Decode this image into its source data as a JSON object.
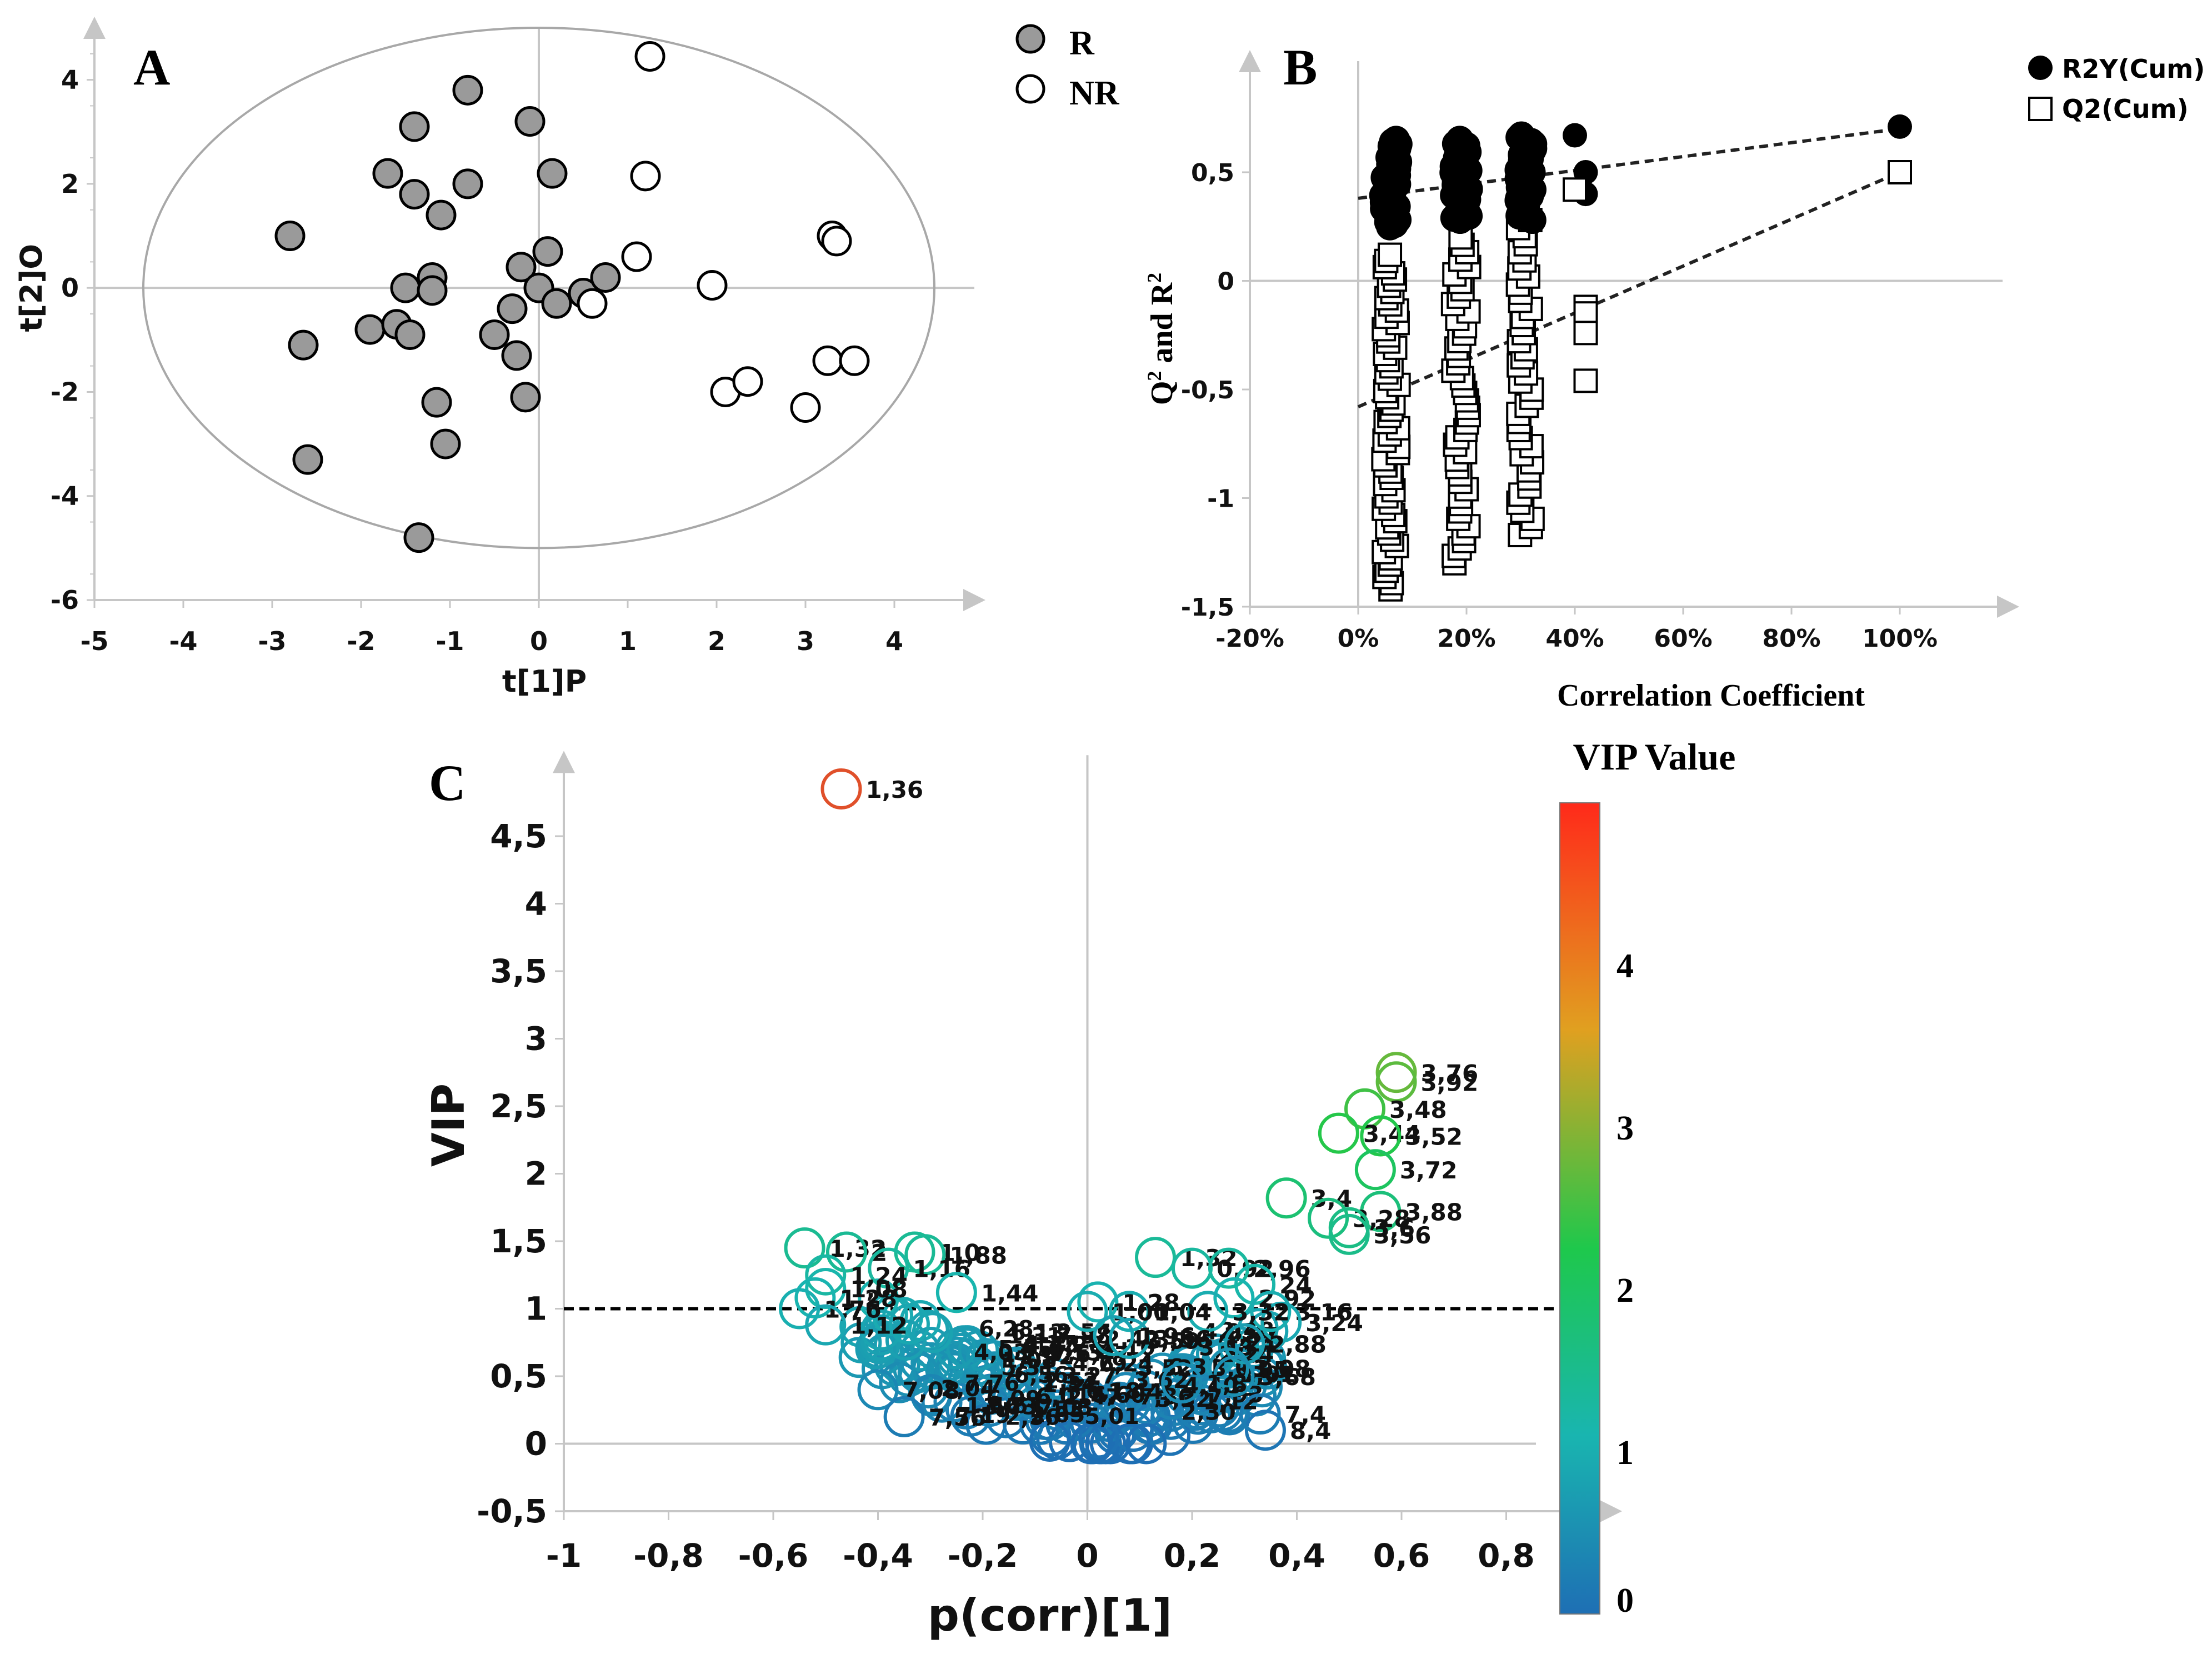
{
  "colors": {
    "axis": "#c6c6c6",
    "grid": "#c6c6c6",
    "r_fill": "#9a9a9a",
    "marker_stroke": "#000000",
    "highlight": "#e0502a",
    "colorbar": [
      "#1e6fb4",
      "#19b5b0",
      "#1ec84c",
      "#e0a020",
      "#ff2a1a"
    ]
  },
  "panel_labels": {
    "a": "A",
    "b": "B",
    "c": "C"
  },
  "chart_data": [
    {
      "id": "A",
      "type": "scatter",
      "xlabel": "t[1]P",
      "ylabel": "t[2]O",
      "xlim": [
        -5,
        5
      ],
      "ylim": [
        -6,
        5
      ],
      "xticks": [
        "-5",
        "-4",
        "-3",
        "-2",
        "-1",
        "0",
        "1",
        "2",
        "3",
        "4"
      ],
      "yticks": [
        "-6",
        "-4",
        "-2",
        "0",
        "2",
        "4"
      ],
      "ellipse": {
        "cx": 0,
        "cy": 0,
        "rx": 4.45,
        "ry": 5.0
      },
      "legend": [
        {
          "label": "R",
          "marker": "filled-gray"
        },
        {
          "label": "NR",
          "marker": "open"
        }
      ],
      "series": [
        {
          "name": "R",
          "points": [
            [
              -0.8,
              3.8
            ],
            [
              -1.4,
              3.1
            ],
            [
              -0.1,
              3.2
            ],
            [
              -1.7,
              2.2
            ],
            [
              -1.4,
              1.8
            ],
            [
              -1.1,
              1.4
            ],
            [
              -0.8,
              2.0
            ],
            [
              0.15,
              2.2
            ],
            [
              -2.8,
              1.0
            ],
            [
              -1.5,
              0.0
            ],
            [
              -1.2,
              0.2
            ],
            [
              -1.2,
              -0.05
            ],
            [
              -0.2,
              0.4
            ],
            [
              0.1,
              0.7
            ],
            [
              0.0,
              0.0
            ],
            [
              0.2,
              -0.3
            ],
            [
              0.5,
              -0.1
            ],
            [
              0.75,
              0.2
            ],
            [
              -0.3,
              -0.4
            ],
            [
              -0.5,
              -0.9
            ],
            [
              -0.25,
              -1.3
            ],
            [
              -1.9,
              -0.8
            ],
            [
              -1.6,
              -0.7
            ],
            [
              -1.45,
              -0.9
            ],
            [
              -2.65,
              -1.1
            ],
            [
              -0.15,
              -2.1
            ],
            [
              -1.15,
              -2.2
            ],
            [
              -1.05,
              -3.0
            ],
            [
              -2.6,
              -3.3
            ],
            [
              -1.35,
              -4.8
            ]
          ]
        },
        {
          "name": "NR",
          "points": [
            [
              1.25,
              4.45
            ],
            [
              1.2,
              2.15
            ],
            [
              1.1,
              0.6
            ],
            [
              1.95,
              0.05
            ],
            [
              0.6,
              -0.3
            ],
            [
              3.3,
              1.0
            ],
            [
              3.35,
              0.9
            ],
            [
              2.1,
              -2.0
            ],
            [
              2.35,
              -1.8
            ],
            [
              3.0,
              -2.3
            ],
            [
              3.25,
              -1.4
            ],
            [
              3.55,
              -1.4
            ]
          ]
        }
      ]
    },
    {
      "id": "B",
      "type": "scatter",
      "xlabel": "Correlation Coefficient",
      "ylabel_main": "Q",
      "ylabel_mid": " and R",
      "ylabel_sup": "2",
      "xlim": [
        -0.2,
        1.2
      ],
      "ylim": [
        -1.5,
        1.0
      ],
      "xticks": [
        "-20%",
        "0%",
        "20%",
        "40%",
        "60%",
        "80%",
        "100%"
      ],
      "yticks": [
        "-1,5",
        "-1",
        "-0,5",
        "0",
        "0,5"
      ],
      "legend": [
        {
          "label": "R2Y(Cum)",
          "marker": "filled-black-circle"
        },
        {
          "label": "Q2(Cum)",
          "marker": "open-square"
        }
      ],
      "regression_lines": [
        {
          "name": "R2Y(Cum)",
          "x": [
            0.0,
            1.0
          ],
          "y": [
            0.38,
            0.7
          ]
        },
        {
          "name": "Q2(Cum)",
          "x": [
            0.0,
            1.0
          ],
          "y": [
            -0.58,
            0.5
          ]
        }
      ],
      "series": [
        {
          "name": "R2Y(Cum)",
          "x": [
            0.06,
            0.19,
            0.31,
            0.4,
            0.42,
            0.42,
            1.0
          ],
          "y": [
            0.45,
            0.45,
            0.45,
            0.67,
            0.5,
            0.4,
            0.71
          ],
          "clusters": [
            {
              "x": 0.06,
              "y_range": [
                0.25,
                0.65
              ],
              "n": 40
            },
            {
              "x": 0.19,
              "y_range": [
                0.28,
                0.65
              ],
              "n": 40
            },
            {
              "x": 0.31,
              "y_range": [
                0.28,
                0.67
              ],
              "n": 40
            }
          ]
        },
        {
          "name": "Q2(Cum)",
          "x": [
            0.4,
            0.42,
            0.42,
            0.42,
            0.42,
            1.0
          ],
          "y": [
            0.42,
            -0.12,
            -0.15,
            -0.24,
            -0.46,
            0.5
          ],
          "clusters": [
            {
              "x": 0.06,
              "y_range": [
                -1.42,
                0.12
              ],
              "n": 55
            },
            {
              "x": 0.19,
              "y_range": [
                -1.3,
                0.2
              ],
              "n": 45
            },
            {
              "x": 0.31,
              "y_range": [
                -1.17,
                0.28
              ],
              "n": 40
            }
          ]
        }
      ]
    },
    {
      "id": "C",
      "type": "scatter",
      "xlabel": "p(corr)[1]",
      "ylabel": "VIP",
      "xlim": [
        -1,
        1
      ],
      "ylim": [
        -0.5,
        5
      ],
      "xticks": [
        "-1",
        "-0,8",
        "-0,6",
        "-0,4",
        "-0,2",
        "0",
        "0,2",
        "0,4",
        "0,6",
        "0,8"
      ],
      "yticks": [
        "-0,5",
        "0",
        "0,5",
        "1",
        "1,5",
        "2",
        "2,5",
        "3",
        "3,5",
        "4",
        "4,5"
      ],
      "threshold": 1,
      "colorbar": {
        "title": "VIP Value",
        "min": 0,
        "max": 5,
        "ticks": [
          "0",
          "1",
          "2",
          "3",
          "4"
        ]
      },
      "labeled_points": [
        {
          "x": -0.47,
          "y": 4.85,
          "label": "1,36"
        },
        {
          "x": 0.59,
          "y": 2.75,
          "label": "3,76"
        },
        {
          "x": 0.59,
          "y": 2.68,
          "label": "3,92"
        },
        {
          "x": 0.53,
          "y": 2.48,
          "label": "3,48"
        },
        {
          "x": 0.48,
          "y": 2.3,
          "label": "3,44"
        },
        {
          "x": 0.56,
          "y": 2.28,
          "label": "3,52"
        },
        {
          "x": 0.55,
          "y": 2.03,
          "label": "3,72"
        },
        {
          "x": 0.38,
          "y": 1.82,
          "label": "3,4"
        },
        {
          "x": 0.56,
          "y": 1.72,
          "label": "3,88"
        },
        {
          "x": 0.46,
          "y": 1.67,
          "label": "3,28"
        },
        {
          "x": 0.5,
          "y": 1.6,
          "label": "3,6"
        },
        {
          "x": 0.5,
          "y": 1.55,
          "label": "3,56"
        },
        {
          "x": -0.54,
          "y": 1.45,
          "label": "1,32"
        },
        {
          "x": -0.46,
          "y": 1.42,
          "label": "2"
        },
        {
          "x": -0.33,
          "y": 1.42,
          "label": "1,0"
        },
        {
          "x": -0.31,
          "y": 1.4,
          "label": "1,88"
        },
        {
          "x": -0.38,
          "y": 1.3,
          "label": "1,16"
        },
        {
          "x": -0.5,
          "y": 1.25,
          "label": "1,24"
        },
        {
          "x": -0.5,
          "y": 1.15,
          "label": "1,08"
        },
        {
          "x": -0.25,
          "y": 1.12,
          "label": "1,44"
        },
        {
          "x": -0.52,
          "y": 1.08,
          "label": "1,28"
        },
        {
          "x": -0.55,
          "y": 1.0,
          "label": "1,76"
        },
        {
          "x": -0.5,
          "y": 0.88,
          "label": "1,12"
        },
        {
          "x": 0.13,
          "y": 1.38,
          "label": "1,32"
        },
        {
          "x": 0.2,
          "y": 1.3,
          "label": "0,92"
        },
        {
          "x": 0.27,
          "y": 1.3,
          "label": "2,96"
        },
        {
          "x": 0.32,
          "y": 1.18,
          "label": "24"
        },
        {
          "x": 0.28,
          "y": 1.08,
          "label": "2,92"
        },
        {
          "x": 0.35,
          "y": 0.98,
          "label": "3,16"
        },
        {
          "x": 0.37,
          "y": 0.9,
          "label": "3,24"
        },
        {
          "x": 0.23,
          "y": 0.98,
          "label": "3,32"
        },
        {
          "x": 0.02,
          "y": 1.05,
          "label": "1,28"
        },
        {
          "x": 0.08,
          "y": 0.98,
          "label": "1,04"
        },
        {
          "x": 0.0,
          "y": 0.98,
          "label": "1,00"
        },
        {
          "x": 0.3,
          "y": 0.74,
          "label": "2,88"
        },
        {
          "x": 0.08,
          "y": 0.78,
          "label": "3,36"
        },
        {
          "x": 0.27,
          "y": 0.56,
          "label": "3,08"
        },
        {
          "x": 0.28,
          "y": 0.5,
          "label": "3,68"
        },
        {
          "x": 0.34,
          "y": 0.1,
          "label": "8,4"
        },
        {
          "x": 0.33,
          "y": 0.22,
          "label": "7,4"
        },
        {
          "x": -0.4,
          "y": 0.4,
          "label": "7,08"
        },
        {
          "x": -0.35,
          "y": 0.2,
          "label": "7,56"
        },
        {
          "x": 0.05,
          "y": 0.8,
          "label": "1,96"
        },
        {
          "x": 0.18,
          "y": 0.45,
          "label": "1,8"
        }
      ]
    }
  ]
}
